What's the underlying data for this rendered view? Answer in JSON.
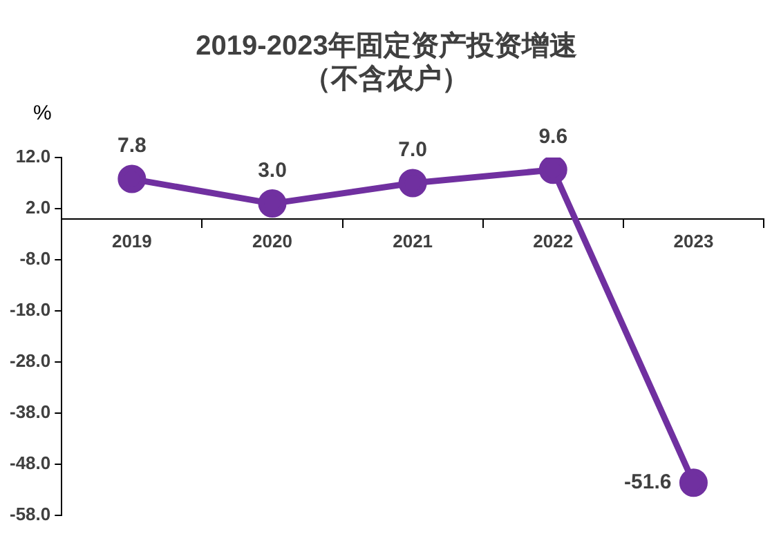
{
  "chart_data": {
    "type": "line",
    "title": [
      "2019-2023年固定资产投资增速",
      "（不含农户）"
    ],
    "ylabel": "%",
    "categories": [
      "2019",
      "2020",
      "2021",
      "2022",
      "2023"
    ],
    "series": [
      {
        "color": "#7030a0",
        "values": [
          7.8,
          3.0,
          7.0,
          9.6,
          -51.6
        ],
        "value_labels": [
          "7.8",
          "3.0",
          "7.0",
          "9.6",
          "-51.6"
        ]
      }
    ],
    "ylim": [
      -58,
      12
    ],
    "yticks": [
      {
        "value": 12,
        "label": "12.0"
      },
      {
        "value": 2,
        "label": "2.0"
      },
      {
        "value": -8,
        "label": "-8.0"
      },
      {
        "value": -18,
        "label": "-18.0"
      },
      {
        "value": -28,
        "label": "-28.0"
      },
      {
        "value": -38,
        "label": "-38.0"
      },
      {
        "value": -48,
        "label": "-48.0"
      },
      {
        "value": -58,
        "label": "-58.0"
      }
    ],
    "grid": false,
    "legend": false,
    "marker": "circle",
    "line_style": "solid"
  }
}
